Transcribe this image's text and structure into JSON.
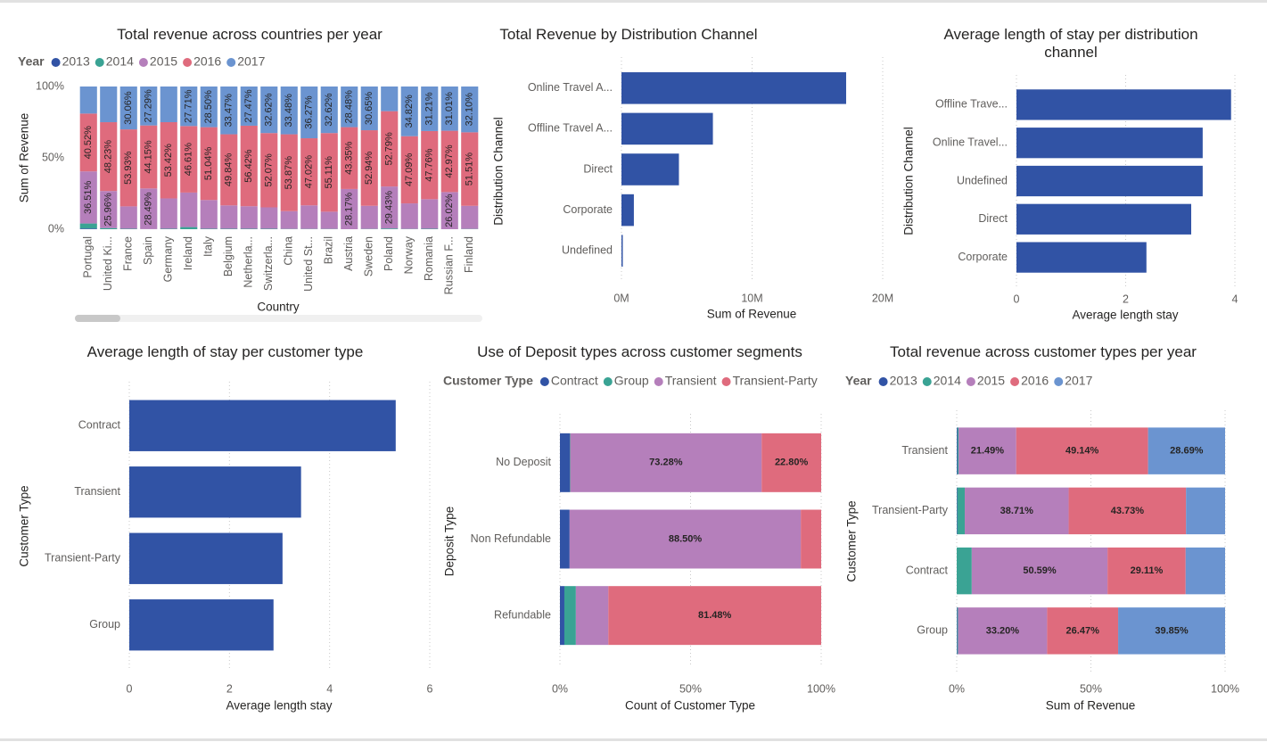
{
  "chart_data": [
    {
      "type": "column",
      "stacked": true,
      "title": "Total revenue across countries per year",
      "legend_title": "Year",
      "x_label": "Country",
      "y_label": "Sum of Revenue",
      "grid": false,
      "categories": [
        "Portugal",
        "United Ki...",
        "France",
        "Spain",
        "Germany",
        "Ireland",
        "Italy",
        "Belgium",
        "Netherla...",
        "Switzerla...",
        "China",
        "United St...",
        "Brazil",
        "Austria",
        "Sweden",
        "Poland",
        "Norway",
        "Romania",
        "Russian F...",
        "Finland"
      ],
      "ylim": [
        0,
        100
      ],
      "yticks": [
        {
          "value": 0,
          "label": "0%"
        },
        {
          "value": 50,
          "label": "50%"
        },
        {
          "value": 100,
          "label": "100%"
        }
      ],
      "series": [
        {
          "name": "2013",
          "color": "#3153a5",
          "values": [
            0.5,
            0,
            0,
            0,
            0,
            0,
            0,
            0,
            0,
            0,
            0,
            0,
            0,
            0,
            0,
            0,
            0,
            0,
            0,
            0
          ]
        },
        {
          "name": "2014",
          "color": "#3aa394",
          "values": [
            3.5,
            0.8,
            0.3,
            0.07,
            0.3,
            1.5,
            0.3,
            0.3,
            0.3,
            0.3,
            0.2,
            0.2,
            0.2,
            0,
            0.2,
            0.5,
            0.2,
            0.3,
            0,
            0.2
          ]
        },
        {
          "name": "2015",
          "color": "#b57fbb",
          "values": [
            36.51,
            25.96,
            15.71,
            28.49,
            21.28,
            24.18,
            20.16,
            16.39,
            15.81,
            15.01,
            12.45,
            16.51,
            12.07,
            28.17,
            16.21,
            29.43,
            17.89,
            20.73,
            26.02,
            16.19
          ],
          "value_labels": [
            "36.51%",
            "25.96%",
            null,
            "28.49%",
            null,
            null,
            null,
            null,
            null,
            null,
            null,
            null,
            null,
            "28.17%",
            null,
            "29.43%",
            null,
            null,
            "26.02%",
            null
          ]
        },
        {
          "name": "2016",
          "color": "#df6b7d",
          "values": [
            40.52,
            48.23,
            53.93,
            44.15,
            53.42,
            46.61,
            51.04,
            49.84,
            56.42,
            52.07,
            53.87,
            47.02,
            55.11,
            43.35,
            52.94,
            52.79,
            47.09,
            47.76,
            42.97,
            51.51
          ],
          "value_labels": [
            "40.52%",
            "48.23%",
            "53.93%",
            "44.15%",
            "53.42%",
            "46.61%",
            "51.04%",
            "49.84%",
            "56.42%",
            "52.07%",
            "53.87%",
            "47.02%",
            "55.11%",
            "43.35%",
            "52.94%",
            "52.79%",
            "47.09%",
            "47.76%",
            "42.97%",
            "51.51%"
          ]
        },
        {
          "name": "2017",
          "color": "#6b94d0",
          "values": [
            18.97,
            25.01,
            30.06,
            27.29,
            25.0,
            27.71,
            28.5,
            33.47,
            27.47,
            32.62,
            33.48,
            36.27,
            32.62,
            28.48,
            30.65,
            17.28,
            34.82,
            31.21,
            31.01,
            32.1
          ],
          "value_labels": [
            null,
            null,
            "30.06%",
            "27.29%",
            null,
            "27.71%",
            "28.50%",
            "33.47%",
            "27.47%",
            "32.62%",
            "33.48%",
            "36.27%",
            "32.62%",
            "28.48%",
            "30.65%",
            null,
            "34.82%",
            "31.21%",
            "31.01%",
            "32.10%"
          ]
        }
      ]
    },
    {
      "type": "bar",
      "title": "Total Revenue by Distribution Channel",
      "x_label": "Sum of Revenue",
      "y_label": "Distribution Channel",
      "grid": true,
      "color": "#3153a5",
      "categories": [
        "Online Travel A...",
        "Offline Travel A...",
        "Direct",
        "Corporate",
        "Undefined"
      ],
      "values": [
        17200000,
        7000000,
        4400000,
        950000,
        100000
      ],
      "xlim": [
        0,
        20000000
      ],
      "xticks": [
        {
          "value": 0,
          "label": "0M"
        },
        {
          "value": 10000000,
          "label": "10M"
        },
        {
          "value": 20000000,
          "label": "20M"
        }
      ]
    },
    {
      "type": "bar",
      "title": "Average length of stay per distribution channel",
      "x_label": "Average length stay",
      "y_label": "Distribution Channel",
      "grid": true,
      "color": "#3153a5",
      "categories": [
        "Offline Trave...",
        "Online Travel...",
        "Undefined",
        "Direct",
        "Corporate"
      ],
      "values": [
        3.93,
        3.41,
        3.41,
        3.2,
        2.38
      ],
      "xlim": [
        0,
        4
      ],
      "xticks": [
        0,
        2,
        4
      ]
    },
    {
      "type": "bar",
      "title": "Average length of stay per customer type",
      "x_label": "Average length stay",
      "y_label": "Customer Type",
      "grid": true,
      "color": "#3153a5",
      "categories": [
        "Contract",
        "Transient",
        "Transient-Party",
        "Group"
      ],
      "values": [
        5.32,
        3.43,
        3.06,
        2.88
      ],
      "xlim": [
        0,
        6
      ],
      "xticks": [
        0,
        2,
        4,
        6
      ]
    },
    {
      "type": "bar",
      "stacked": true,
      "title": "Use of Deposit types across customer segments",
      "legend_title": "Customer Type",
      "x_label": "Count of Customer Type",
      "y_label": "Deposit Type",
      "grid": true,
      "categories": [
        "No Deposit",
        "Non Refundable",
        "Refundable"
      ],
      "xlim": [
        0,
        100
      ],
      "xticks": [
        {
          "value": 0,
          "label": "0%"
        },
        {
          "value": 50,
          "label": "50%"
        },
        {
          "value": 100,
          "label": "100%"
        }
      ],
      "series": [
        {
          "name": "Contract",
          "color": "#3153a5",
          "values": [
            3.75,
            3.7,
            1.7
          ]
        },
        {
          "name": "Group",
          "color": "#3aa394",
          "values": [
            0.17,
            0,
            4.4
          ]
        },
        {
          "name": "Transient",
          "color": "#b57fbb",
          "values": [
            73.28,
            88.5,
            12.42
          ],
          "value_labels": [
            "73.28%",
            "88.50%",
            null
          ]
        },
        {
          "name": "Transient-Party",
          "color": "#df6b7d",
          "values": [
            22.8,
            7.8,
            81.48
          ],
          "value_labels": [
            "22.80%",
            null,
            "81.48%"
          ]
        }
      ]
    },
    {
      "type": "bar",
      "stacked": true,
      "title": "Total revenue across customer types per year",
      "legend_title": "Year",
      "x_label": "Sum of Revenue",
      "y_label": "Customer Type",
      "grid": true,
      "categories": [
        "Transient",
        "Transient-Party",
        "Contract",
        "Group"
      ],
      "xlim": [
        0,
        100
      ],
      "xticks": [
        {
          "value": 0,
          "label": "0%"
        },
        {
          "value": 50,
          "label": "50%"
        },
        {
          "value": 100,
          "label": "100%"
        }
      ],
      "series": [
        {
          "name": "2013",
          "color": "#3153a5",
          "values": [
            0.3,
            0.2,
            0,
            0.2
          ]
        },
        {
          "name": "2014",
          "color": "#3aa394",
          "values": [
            0.38,
            2.8,
            5.6,
            0.28
          ]
        },
        {
          "name": "2015",
          "color": "#b57fbb",
          "values": [
            21.49,
            38.71,
            50.59,
            33.2
          ],
          "value_labels": [
            "21.49%",
            "38.71%",
            "50.59%",
            "33.20%"
          ]
        },
        {
          "name": "2016",
          "color": "#df6b7d",
          "values": [
            49.14,
            43.73,
            29.11,
            26.47
          ],
          "value_labels": [
            "49.14%",
            "43.73%",
            "29.11%",
            "26.47%"
          ]
        },
        {
          "name": "2017",
          "color": "#6b94d0",
          "values": [
            28.69,
            14.56,
            14.7,
            39.85
          ],
          "value_labels": [
            "28.69%",
            null,
            null,
            "39.85%"
          ]
        }
      ]
    }
  ]
}
